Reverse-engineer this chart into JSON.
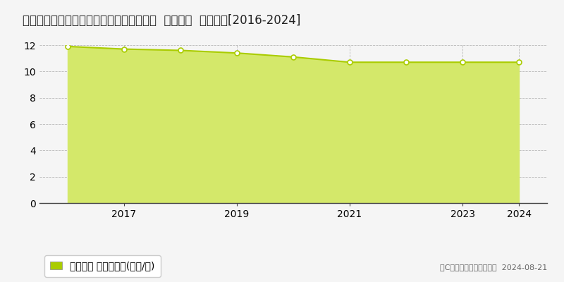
{
  "title": "東京都青梅市小曽木３丁目２０２４番１外  地価公示  地価推移[2016-2024]",
  "years": [
    2016,
    2017,
    2018,
    2019,
    2020,
    2021,
    2022,
    2023,
    2024
  ],
  "values": [
    11.9,
    11.7,
    11.6,
    11.4,
    11.1,
    10.7,
    10.7,
    10.7,
    10.7
  ],
  "line_color": "#aacc00",
  "fill_color": "#d4e86a",
  "marker_color": "#ffffff",
  "marker_edge_color": "#aacc00",
  "ylim": [
    0,
    12
  ],
  "yticks": [
    0,
    2,
    4,
    6,
    8,
    10,
    12
  ],
  "xtick_labels": [
    "2017",
    "2019",
    "2021",
    "2023",
    "2024"
  ],
  "xtick_positions": [
    2017,
    2019,
    2021,
    2023,
    2024
  ],
  "grid_color": "#aaaaaa",
  "bg_color": "#f5f5f5",
  "plot_bg_color": "#f5f5f5",
  "legend_label": "地価公示 平均嵪単価(万円/嵪)",
  "legend_marker_color": "#aacc00",
  "copyright_text": "（C）土地価格ドットコム  2024-08-21",
  "title_fontsize": 12,
  "axis_fontsize": 10,
  "legend_fontsize": 10,
  "copyright_fontsize": 8,
  "xlim_left": 2015.5,
  "xlim_right": 2024.5
}
